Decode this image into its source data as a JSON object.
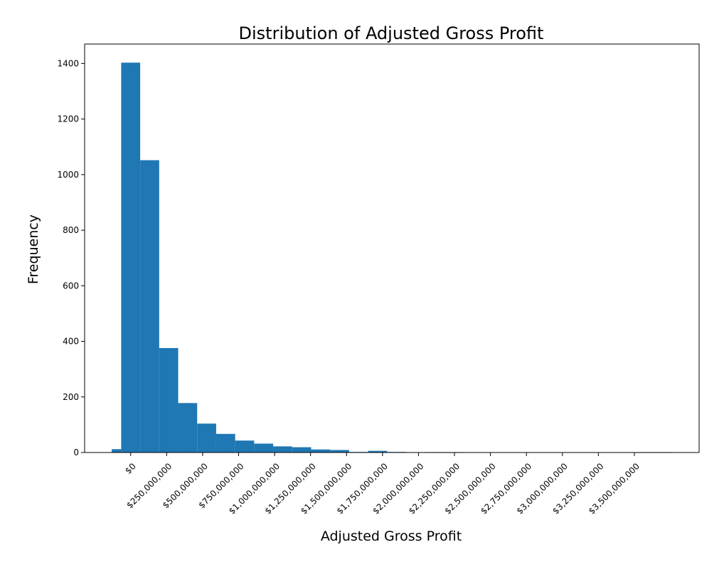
{
  "chart_data": {
    "type": "bar",
    "title": "Distribution of Adjusted Gross Profit",
    "xlabel": "Adjusted Gross Profit",
    "ylabel": "Frequency",
    "bins": [
      {
        "start": -132000000,
        "end": -66000000,
        "count": 12
      },
      {
        "start": -66000000,
        "end": 66000000,
        "count": 1403
      },
      {
        "start": 66000000,
        "end": 198000000,
        "count": 1052
      },
      {
        "start": 198000000,
        "end": 330000000,
        "count": 376
      },
      {
        "start": 330000000,
        "end": 462000000,
        "count": 178
      },
      {
        "start": 462000000,
        "end": 594000000,
        "count": 104
      },
      {
        "start": 594000000,
        "end": 726000000,
        "count": 67
      },
      {
        "start": 726000000,
        "end": 858000000,
        "count": 43
      },
      {
        "start": 858000000,
        "end": 990000000,
        "count": 32
      },
      {
        "start": 990000000,
        "end": 1122000000,
        "count": 22
      },
      {
        "start": 1122000000,
        "end": 1254000000,
        "count": 19
      },
      {
        "start": 1254000000,
        "end": 1386000000,
        "count": 11
      },
      {
        "start": 1386000000,
        "end": 1518000000,
        "count": 9
      },
      {
        "start": 1518000000,
        "end": 1650000000,
        "count": 2
      },
      {
        "start": 1650000000,
        "end": 1782000000,
        "count": 6
      },
      {
        "start": 1782000000,
        "end": 1914000000,
        "count": 2
      },
      {
        "start": 1914000000,
        "end": 2046000000,
        "count": 0
      },
      {
        "start": 2046000000,
        "end": 2178000000,
        "count": 1
      },
      {
        "start": 2178000000,
        "end": 2310000000,
        "count": 1
      },
      {
        "start": 2310000000,
        "end": 2442000000,
        "count": 0
      },
      {
        "start": 2442000000,
        "end": 2574000000,
        "count": 0
      },
      {
        "start": 2574000000,
        "end": 2706000000,
        "count": 0
      },
      {
        "start": 2706000000,
        "end": 2838000000,
        "count": 0
      },
      {
        "start": 2838000000,
        "end": 2970000000,
        "count": 0
      },
      {
        "start": 2970000000,
        "end": 3102000000,
        "count": 0
      },
      {
        "start": 3102000000,
        "end": 3234000000,
        "count": 0
      },
      {
        "start": 3234000000,
        "end": 3366000000,
        "count": 0
      },
      {
        "start": 3366000000,
        "end": 3498000000,
        "count": 0
      },
      {
        "start": 3498000000,
        "end": 3630000000,
        "count": 1
      },
      {
        "start": 3630000000,
        "end": 3762000000,
        "count": 1
      }
    ],
    "xlim": [
      -320000000,
      3950000000
    ],
    "ylim": [
      0,
      1470
    ],
    "x_ticks": [
      0,
      250000000,
      500000000,
      750000000,
      1000000000,
      1250000000,
      1500000000,
      1750000000,
      2000000000,
      2250000000,
      2500000000,
      2750000000,
      3000000000,
      3250000000,
      3500000000
    ],
    "x_tick_labels": [
      "$0",
      "$250,000,000",
      "$500,000,000",
      "$750,000,000",
      "$1,000,000,000",
      "$1,250,000,000",
      "$1,500,000,000",
      "$1,750,000,000",
      "$2,000,000,000",
      "$2,250,000,000",
      "$2,500,000,000",
      "$2,750,000,000",
      "$3,000,000,000",
      "$3,250,000,000",
      "$3,500,000,000"
    ],
    "y_ticks": [
      0,
      200,
      400,
      600,
      800,
      1000,
      1200,
      1400
    ],
    "y_tick_labels": [
      "0",
      "200",
      "400",
      "600",
      "800",
      "1000",
      "1200",
      "1400"
    ],
    "bar_color": "#1f77b4",
    "grid": false,
    "legend": "none"
  }
}
